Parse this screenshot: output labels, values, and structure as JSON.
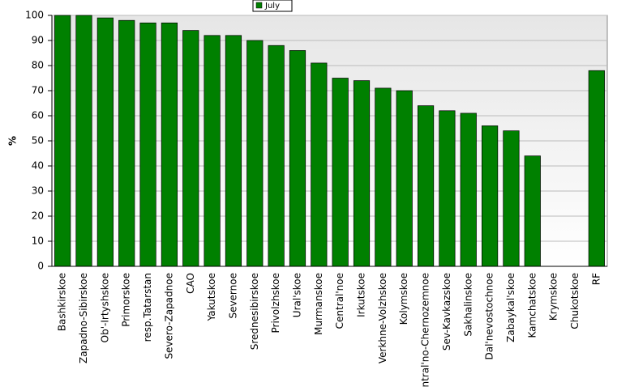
{
  "chart_data": {
    "type": "bar",
    "y_label": "%",
    "categories": [
      "Bashkirskoe",
      "Zapadno-Sibirskoe",
      "Ob'-Irtyshskoe",
      "Primorskoe",
      "resp.Tatarstan",
      "Severo-Zapadnoe",
      "CAO",
      "Yakutskoe",
      "Severnoe",
      "Srednesibirskoe",
      "Privolzhskoe",
      "Ural'skoe",
      "Murmanskoe",
      "Central'noe",
      "Irkutskoe",
      "Verkhne-Volzhskoe",
      "Kolymskoe",
      "Central'no-Chernozemnoe",
      "Sev-Kavkazskoe",
      "Sakhalinskoe",
      "Dal'nevostochnoe",
      "Zabaykal'skoe",
      "Kamchatskoe",
      "Krymskoe",
      "Chukotskoe",
      "RF"
    ],
    "series": [
      {
        "name": "July",
        "color": "#008000",
        "values": [
          100,
          100,
          99,
          98,
          97,
          97,
          94,
          92,
          92,
          90,
          88,
          86,
          81,
          75,
          74,
          71,
          70,
          64,
          62,
          61,
          56,
          54,
          44,
          0,
          0,
          78
        ]
      }
    ],
    "ylim": [
      0,
      100
    ],
    "yticks": [
      0,
      10,
      20,
      30,
      40,
      50,
      60,
      70,
      80,
      90,
      100
    ],
    "grid": true,
    "legend": "top"
  }
}
